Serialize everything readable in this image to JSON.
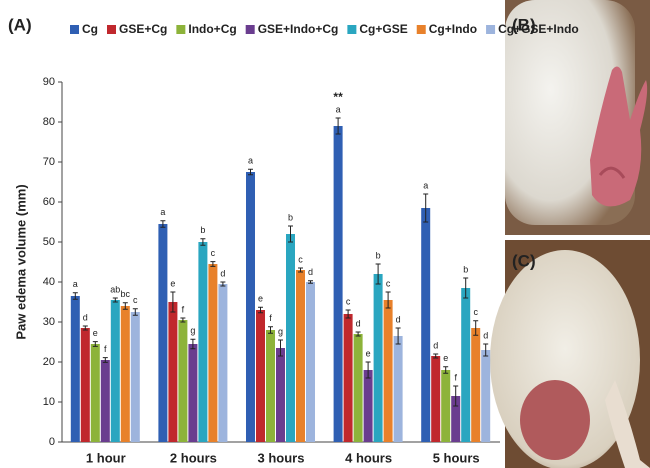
{
  "chart_data": {
    "type": "bar",
    "panel_label": "(A)",
    "y_label": "Paw edema volume (mm)",
    "categories": [
      "1 hour",
      "2 hours",
      "3 hours",
      "4 hours",
      "5 hours"
    ],
    "ylim": [
      0,
      90
    ],
    "yticks": [
      0,
      10,
      20,
      30,
      40,
      50,
      60,
      70,
      80,
      90
    ],
    "annotation": "**",
    "series": [
      {
        "name": "Cg",
        "color": "#2f5fb3",
        "values": [
          36.5,
          54.5,
          67.5,
          79,
          58.5
        ],
        "errors": [
          0.8,
          0.8,
          0.7,
          2,
          3.5
        ],
        "letters": [
          "a",
          "a",
          "a",
          "a",
          "a"
        ]
      },
      {
        "name": "GSE+Cg",
        "color": "#c0282d",
        "values": [
          28.5,
          35,
          33,
          32,
          21.5
        ],
        "errors": [
          0.5,
          2.5,
          0.7,
          1,
          0.5
        ],
        "letters": [
          "d",
          "e",
          "e",
          "c",
          "d"
        ]
      },
      {
        "name": "Indo+Cg",
        "color": "#8db33a",
        "values": [
          24.5,
          30.5,
          28,
          27,
          18
        ],
        "errors": [
          0.6,
          0.5,
          0.8,
          0.5,
          0.8
        ],
        "letters": [
          "e",
          "f",
          "f",
          "d",
          "e"
        ]
      },
      {
        "name": "GSE+Indo+Cg",
        "color": "#6a3d8f",
        "values": [
          20.5,
          24.5,
          23.5,
          18,
          11.5
        ],
        "errors": [
          0.6,
          1.2,
          2,
          2,
          2.5
        ],
        "letters": [
          "f",
          "g",
          "g",
          "e",
          "f"
        ]
      },
      {
        "name": "Cg+GSE",
        "color": "#2aa6c0",
        "values": [
          35.5,
          50,
          52,
          42,
          38.5
        ],
        "errors": [
          0.5,
          0.8,
          2,
          2.5,
          2.5
        ],
        "letters": [
          "ab",
          "b",
          "b",
          "b",
          "b"
        ]
      },
      {
        "name": "Cg+Indo",
        "color": "#e8812b",
        "values": [
          34,
          44.5,
          43,
          35.5,
          28.5
        ],
        "errors": [
          0.8,
          0.6,
          0.5,
          2,
          1.8
        ],
        "letters": [
          "bc",
          "c",
          "c",
          "c",
          "c"
        ]
      },
      {
        "name": "Cg+GSE+Indo",
        "color": "#9db4dd",
        "values": [
          32.5,
          39.5,
          40,
          26.5,
          23
        ],
        "errors": [
          0.8,
          0.5,
          0.3,
          2,
          1.5
        ],
        "letters": [
          "c",
          "d",
          "d",
          "d",
          "d"
        ]
      }
    ]
  },
  "photos": {
    "labels": [
      "(B)",
      "(C)"
    ]
  }
}
